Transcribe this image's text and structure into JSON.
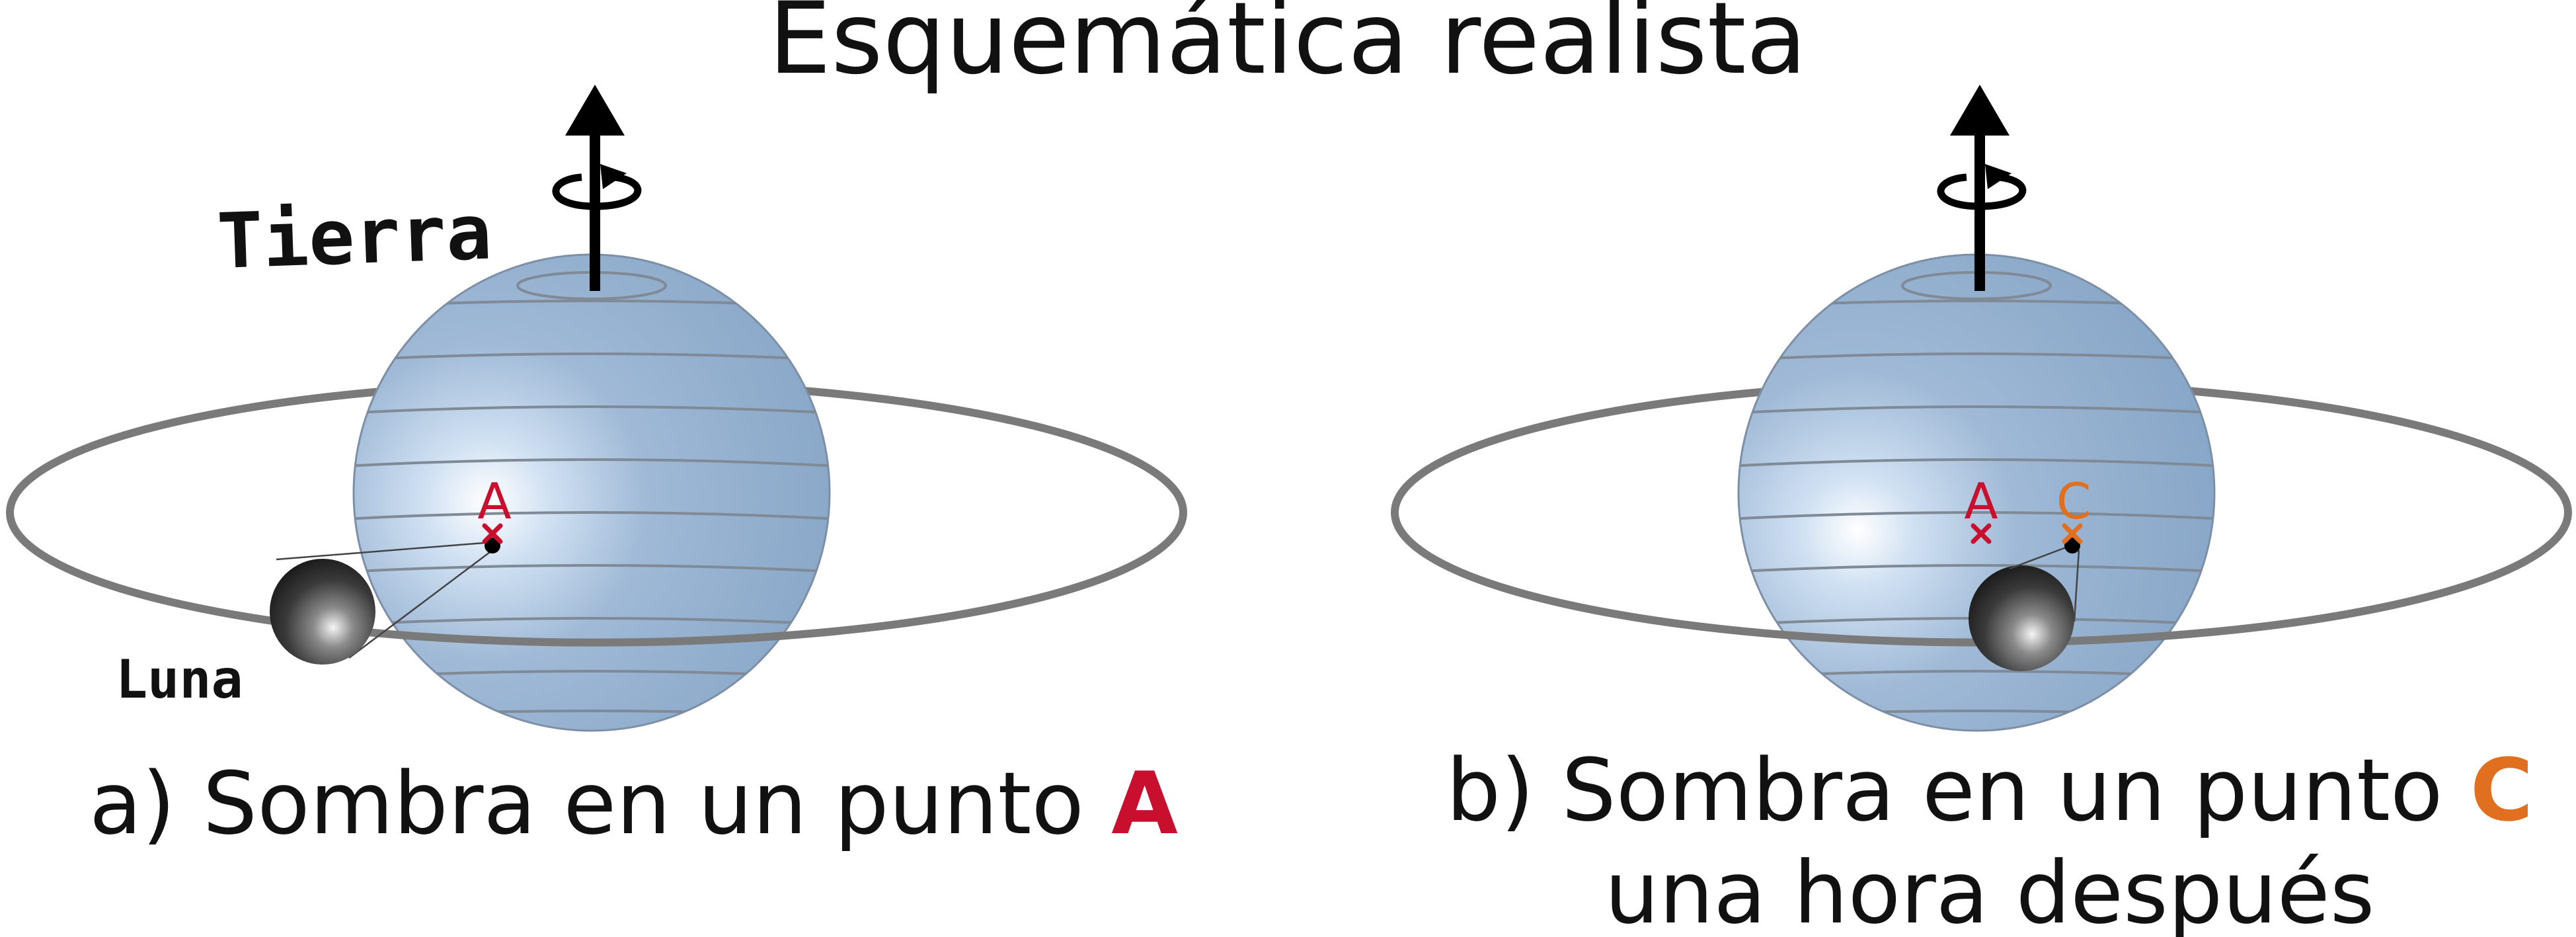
{
  "title": "Esquemática realista",
  "colors": {
    "earth": "#8eabcb",
    "orbit": "#7a7a7a",
    "point_a": "#c8102e",
    "point_c": "#e07020",
    "text": "#111111"
  },
  "panel_a": {
    "earth_label": "Tierra",
    "moon_label": "Luna",
    "point_a_label": "A",
    "caption_prefix": "a) Sombra en un punto ",
    "caption_point": "A"
  },
  "panel_b": {
    "point_a_label": "A",
    "point_c_label": "C",
    "caption_prefix": "b) Sombra en un punto ",
    "caption_point": "C",
    "caption_line2": "una hora después"
  },
  "icons": {
    "rotation_axis": "rotation-axis-arrow-icon",
    "mark": "x-mark-icon"
  }
}
